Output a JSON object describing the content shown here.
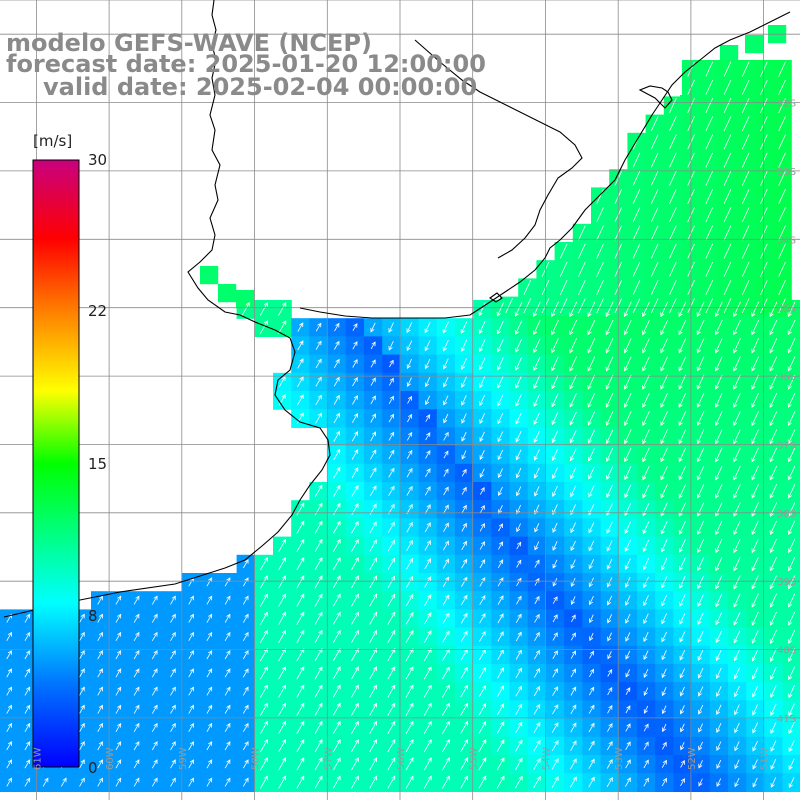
{
  "header": {
    "title": "modelo GEFS-WAVE (NCEP)",
    "forecast": "forecast date: 2025-01-20 12:00:00",
    "valid": "valid date: 2025-02-04 00:00:00"
  },
  "colorbar": {
    "units": "[m/s]",
    "ticks": [
      "30",
      "22",
      "15",
      "8",
      "0"
    ],
    "tick_values": [
      30,
      22,
      15,
      8,
      0
    ],
    "range": [
      0,
      30
    ]
  },
  "map": {
    "variable": "wind speed with direction arrows",
    "lat_labels": [
      "32S",
      "33S",
      "34S",
      "35S",
      "36S",
      "37S",
      "38S",
      "39S",
      "40S",
      "41S"
    ],
    "lat_values": [
      -32,
      -33,
      -34,
      -35,
      -36,
      -37,
      -38,
      -39,
      -40,
      -41
    ],
    "lon_labels": [
      "61W",
      "60W",
      "59W",
      "58W",
      "57W",
      "56W",
      "55W",
      "54W",
      "53W",
      "52W",
      "51W"
    ],
    "lon_values": [
      -61,
      -60,
      -59,
      -58,
      -57,
      -56,
      -55,
      -54,
      -53,
      -52,
      -51
    ],
    "lon_range": [
      -61.5,
      -50.5
    ],
    "lat_range": [
      -42.2,
      -30.5
    ],
    "colors": {
      "land": "#ffffff",
      "coast": "#000000",
      "grid": "#8a8a8a",
      "arrow": "#ffffff"
    }
  }
}
